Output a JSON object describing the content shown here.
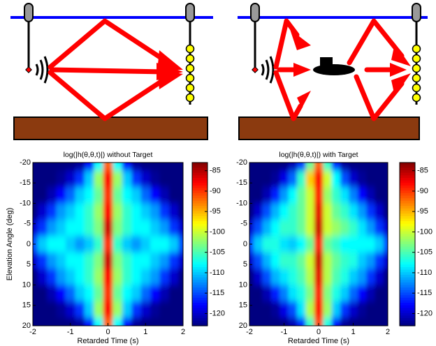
{
  "chart_data": [
    {
      "type": "heatmap",
      "title": "log(|h(θ,θ,t)|) without Target",
      "xlabel": "Retarded Time (s)",
      "ylabel": "Elevation Angle (deg)",
      "x": [
        -2,
        -1.75,
        -1.5,
        -1.25,
        -1,
        -0.75,
        -0.5,
        -0.25,
        0,
        0.25,
        0.5,
        0.75,
        1,
        1.25,
        1.5,
        1.75,
        2
      ],
      "y": [
        -20,
        -16,
        -12,
        -8,
        -4,
        0,
        4,
        8,
        12,
        16,
        20
      ],
      "values": [
        [
          -125,
          -125,
          -124,
          -124,
          -123,
          -122,
          -118,
          -108,
          -92,
          -108,
          -118,
          -122,
          -123,
          -124,
          -124,
          -125,
          -125
        ],
        [
          -125,
          -124,
          -123,
          -122,
          -120,
          -116,
          -110,
          -102,
          -88,
          -102,
          -110,
          -116,
          -120,
          -122,
          -123,
          -124,
          -125
        ],
        [
          -124,
          -123,
          -121,
          -118,
          -114,
          -110,
          -108,
          -104,
          -90,
          -104,
          -108,
          -110,
          -114,
          -118,
          -121,
          -123,
          -124
        ],
        [
          -123,
          -120,
          -116,
          -112,
          -110,
          -108,
          -106,
          -102,
          -88,
          -102,
          -106,
          -108,
          -110,
          -112,
          -116,
          -120,
          -123
        ],
        [
          -120,
          -116,
          -112,
          -110,
          -108,
          -108,
          -106,
          -103,
          -86,
          -103,
          -106,
          -108,
          -108,
          -110,
          -112,
          -116,
          -120
        ],
        [
          -115,
          -110,
          -108,
          -108,
          -110,
          -112,
          -110,
          -106,
          -90,
          -106,
          -110,
          -112,
          -110,
          -108,
          -108,
          -110,
          -115
        ],
        [
          -120,
          -116,
          -112,
          -110,
          -108,
          -108,
          -106,
          -103,
          -86,
          -103,
          -106,
          -108,
          -108,
          -110,
          -112,
          -116,
          -120
        ],
        [
          -123,
          -120,
          -116,
          -112,
          -110,
          -108,
          -106,
          -102,
          -88,
          -102,
          -106,
          -108,
          -110,
          -112,
          -116,
          -120,
          -123
        ],
        [
          -124,
          -123,
          -121,
          -118,
          -114,
          -110,
          -108,
          -104,
          -90,
          -104,
          -108,
          -110,
          -114,
          -118,
          -121,
          -123,
          -124
        ],
        [
          -125,
          -124,
          -123,
          -122,
          -120,
          -116,
          -110,
          -102,
          -88,
          -102,
          -110,
          -116,
          -120,
          -122,
          -123,
          -124,
          -125
        ],
        [
          -125,
          -125,
          -124,
          -124,
          -123,
          -122,
          -118,
          -108,
          -92,
          -108,
          -118,
          -122,
          -123,
          -124,
          -124,
          -125,
          -125
        ]
      ],
      "xlim": [
        -2,
        2
      ],
      "ylim": [
        20,
        -20
      ],
      "xticks": [
        -2,
        -1,
        0,
        1,
        2
      ],
      "yticks": [
        -20,
        -15,
        -10,
        -5,
        0,
        5,
        10,
        15,
        20
      ],
      "clim": [
        -123,
        -83
      ],
      "colorbar_ticks": [
        -85,
        -90,
        -95,
        -100,
        -105,
        -110,
        -115,
        -120
      ]
    },
    {
      "type": "heatmap",
      "title": "log(|h(θ,θ,t)|) with Target",
      "xlabel": "Retarded Time (s)",
      "x": [
        -2,
        -1.75,
        -1.5,
        -1.25,
        -1,
        -0.75,
        -0.5,
        -0.25,
        0,
        0.25,
        0.5,
        0.75,
        1,
        1.25,
        1.5,
        1.75,
        2
      ],
      "y": [
        -20,
        -16,
        -12,
        -8,
        -4,
        0,
        4,
        8,
        12,
        16,
        20
      ],
      "values": [
        [
          -125,
          -125,
          -124,
          -124,
          -123,
          -121,
          -116,
          -104,
          -92,
          -106,
          -117,
          -122,
          -123,
          -124,
          -124,
          -125,
          -125
        ],
        [
          -125,
          -124,
          -123,
          -122,
          -119,
          -114,
          -106,
          -96,
          -88,
          -100,
          -108,
          -115,
          -120,
          -122,
          -123,
          -124,
          -125
        ],
        [
          -124,
          -123,
          -121,
          -117,
          -112,
          -108,
          -104,
          -100,
          -89,
          -102,
          -106,
          -109,
          -113,
          -118,
          -121,
          -123,
          -124
        ],
        [
          -123,
          -120,
          -115,
          -111,
          -108,
          -106,
          -104,
          -100,
          -87,
          -100,
          -104,
          -106,
          -109,
          -112,
          -116,
          -120,
          -123
        ],
        [
          -120,
          -115,
          -111,
          -108,
          -106,
          -106,
          -104,
          -100,
          -86,
          -100,
          -102,
          -104,
          -106,
          -109,
          -112,
          -116,
          -120
        ],
        [
          -115,
          -110,
          -107,
          -107,
          -109,
          -110,
          -108,
          -104,
          -89,
          -104,
          -106,
          -108,
          -108,
          -108,
          -108,
          -110,
          -115
        ],
        [
          -120,
          -115,
          -111,
          -108,
          -106,
          -106,
          -104,
          -100,
          -86,
          -101,
          -104,
          -106,
          -107,
          -110,
          -112,
          -116,
          -120
        ],
        [
          -123,
          -120,
          -115,
          -111,
          -109,
          -107,
          -105,
          -101,
          -87,
          -101,
          -105,
          -107,
          -110,
          -112,
          -116,
          -120,
          -123
        ],
        [
          -124,
          -123,
          -121,
          -117,
          -113,
          -109,
          -107,
          -103,
          -89,
          -103,
          -107,
          -110,
          -114,
          -118,
          -121,
          -123,
          -124
        ],
        [
          -125,
          -124,
          -123,
          -122,
          -119,
          -115,
          -109,
          -101,
          -88,
          -102,
          -110,
          -116,
          -120,
          -122,
          -123,
          -124,
          -125
        ],
        [
          -125,
          -125,
          -124,
          -124,
          -123,
          -121,
          -117,
          -106,
          -91,
          -107,
          -118,
          -122,
          -123,
          -124,
          -124,
          -125,
          -125
        ]
      ],
      "xlim": [
        -2,
        2
      ],
      "ylim": [
        20,
        -20
      ],
      "xticks": [
        -2,
        -1,
        0,
        1,
        2
      ],
      "yticks": [
        -20,
        -15,
        -10,
        -5,
        0,
        5,
        10,
        15,
        20
      ],
      "clim": [
        -123,
        -83
      ],
      "colorbar_ticks": [
        -85,
        -90,
        -95,
        -100,
        -105,
        -110,
        -115,
        -120
      ]
    }
  ]
}
